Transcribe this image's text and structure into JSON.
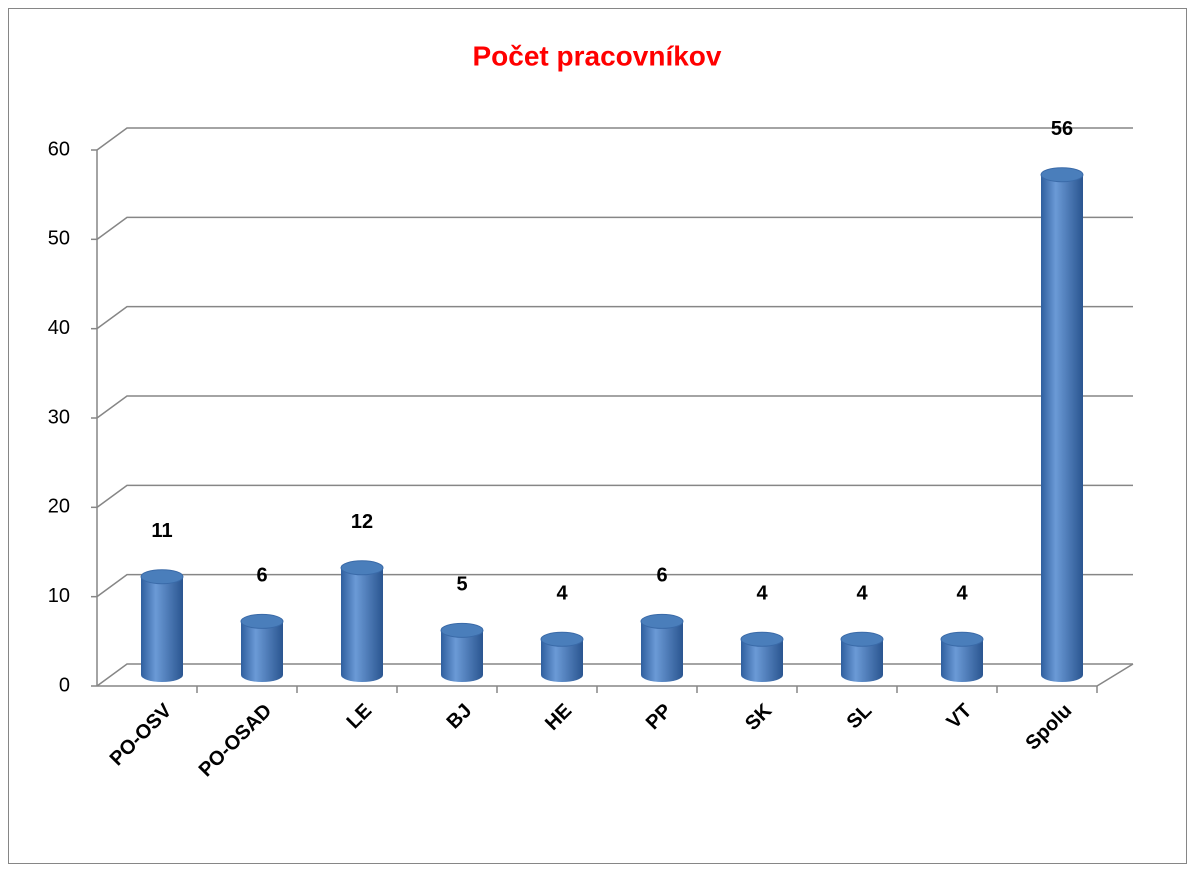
{
  "chart_data": {
    "type": "bar",
    "title": "Počet pracovníkov",
    "categories": [
      "PO-OSV",
      "PO-OSAD",
      "LE",
      "BJ",
      "HE",
      "PP",
      "SK",
      "SL",
      "VT",
      "Spolu"
    ],
    "values": [
      11,
      6,
      12,
      5,
      4,
      6,
      4,
      4,
      4,
      56
    ],
    "color": "#4a7ebb",
    "ylim": [
      0,
      60
    ],
    "yticks": [
      0,
      10,
      20,
      30,
      40,
      50,
      60
    ],
    "grid": true
  }
}
